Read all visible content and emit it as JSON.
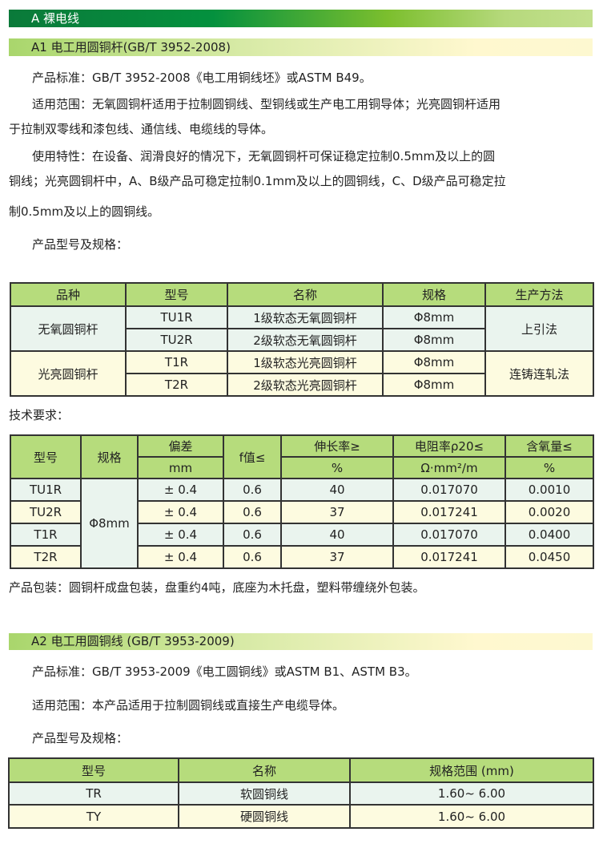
{
  "section_a": {
    "title": "A  裸电线"
  },
  "a1": {
    "title": "A1 电工用圆铜杆(GB/T 3952-2008)",
    "standard": "产品标准：GB/T 3952-2008《电工用铜线坯》或ASTM B49。",
    "scope_1": "适用范围：无氧圆铜杆适用于拉制圆铜线、型铜线或生产电工用铜导体；光亮圆铜杆适用",
    "scope_2": "于拉制双零线和漆包线、通信线、电缆线的导体。",
    "usage_1": "使用特性：在设备、润滑良好的情况下，无氧圆铜杆可保证稳定拉制0.5mm及以上的圆",
    "usage_2": "铜线；光亮圆铜杆中，A、B级产品可稳定拉制0.1mm及以上的圆铜线，C、D级产品可稳定拉",
    "usage_3": "制0.5mm及以上的圆铜线。",
    "spec_label": "产品型号及规格：",
    "table": {
      "headers": [
        "品种",
        "型号",
        "名称",
        "规格",
        "生产方法"
      ],
      "groups": [
        {
          "kind": "无氧圆铜杆",
          "method": "上引法",
          "rows": [
            [
              "TU1R",
              "1级软态无氧圆铜杆",
              "Φ8mm"
            ],
            [
              "TU2R",
              "2级软态无氧圆铜杆",
              "Φ8mm"
            ]
          ]
        },
        {
          "kind": "光亮圆铜杆",
          "method": "连铸连轧法",
          "rows": [
            [
              "T1R",
              "1级软态光亮圆铜杆",
              "Φ8mm"
            ],
            [
              "T2R",
              "2级软态光亮圆铜杆",
              "Φ8mm"
            ]
          ]
        }
      ]
    },
    "tech_label": "技术要求：",
    "tech_table": {
      "headers": [
        "型号",
        "规格",
        "偏差",
        "f值≤",
        "伸长率≥",
        "电阻率ρ20≤",
        "含氧量≤"
      ],
      "units": [
        "mm",
        "%",
        "Ω·mm²/m",
        "%"
      ],
      "spec": "Φ8mm",
      "rows": [
        [
          "TU1R",
          "± 0.4",
          "0.6",
          "40",
          "0.017070",
          "0.0010"
        ],
        [
          "TU2R",
          "± 0.4",
          "0.6",
          "37",
          "0.017241",
          "0.0020"
        ],
        [
          "T1R",
          "± 0.4",
          "0.6",
          "40",
          "0.017070",
          "0.0400"
        ],
        [
          "T2R",
          "± 0.4",
          "0.6",
          "37",
          "0.017241",
          "0.0450"
        ]
      ]
    },
    "packaging": "产品包装：圆铜杆成盘包装，盘重约4吨，底座为木托盘，塑料带缠绕外包装。"
  },
  "a2": {
    "title": "A2 电工用圆铜线 (GB/T 3953-2009)",
    "standard": "产品标准：GB/T 3953-2009《电工圆铜线》或ASTM B1、ASTM B3。",
    "scope": "适用范围：本产品适用于拉制圆铜线或直接生产电缆导体。",
    "spec_label": "产品型号及规格：",
    "table": {
      "headers": [
        "型号",
        "名称",
        "规格范围 (mm)"
      ],
      "rows": [
        [
          "TR",
          "软圆铜线",
          "1.60~ 6.00"
        ],
        [
          "TY",
          "硬圆铜线",
          "1.60~ 6.00"
        ]
      ]
    }
  },
  "colors": {
    "header_green": "#b6dc7c",
    "row_green": "#eaf4ee",
    "row_yellow": "#fdfbe0",
    "banner_dark": "#0a7a3a"
  }
}
